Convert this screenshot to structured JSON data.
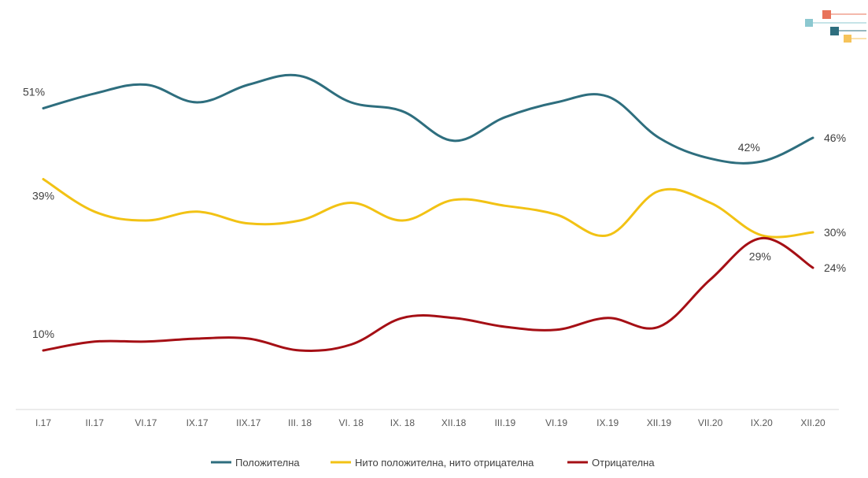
{
  "chart_data": {
    "type": "line",
    "categories": [
      "I.17",
      "II.17",
      "VI.17",
      "IX.17",
      "IIX.17",
      "III. 18",
      "VI. 18",
      "IX. 18",
      "XII.18",
      "III.19",
      "VI.19",
      "IX.19",
      "XII.19",
      "VII.20",
      "IX.20",
      "XII.20"
    ],
    "ylim": [
      0,
      60
    ],
    "grid": false,
    "legend_position": "bottom",
    "series": [
      {
        "name": "Положителна",
        "color": "#2E6E7E",
        "values": [
          51,
          53.5,
          55,
          52,
          55,
          56.5,
          52,
          50.5,
          45.5,
          49.5,
          52,
          53,
          46,
          42.5,
          42,
          46
        ]
      },
      {
        "name": "Нито положителна, нито отрицателна",
        "color": "#F2C214",
        "values": [
          39,
          33.5,
          32,
          33.5,
          31.5,
          32,
          35,
          32,
          35.5,
          34.5,
          33,
          29.5,
          37,
          35,
          29.5,
          30
        ]
      },
      {
        "name": "Отрицателна",
        "color": "#A50F15",
        "values": [
          10,
          11.5,
          11.5,
          12,
          12,
          10,
          11,
          15.5,
          15.5,
          14,
          13.5,
          15.5,
          14,
          22,
          29,
          24
        ]
      }
    ],
    "data_labels": [
      {
        "text": "51%",
        "series": 0,
        "index": 0
      },
      {
        "text": "42%",
        "series": 0,
        "index": 14
      },
      {
        "text": "46%",
        "series": 0,
        "index": 15
      },
      {
        "text": "39%",
        "series": 1,
        "index": 0
      },
      {
        "text": "30%",
        "series": 1,
        "index": 15
      },
      {
        "text": "10%",
        "series": 2,
        "index": 0
      },
      {
        "text": "29%",
        "series": 2,
        "index": 14
      },
      {
        "text": "24%",
        "series": 2,
        "index": 15
      }
    ]
  },
  "logo": {
    "colors": [
      "#E8735A",
      "#8CC8D0",
      "#2E6E7E",
      "#F6C35A"
    ]
  }
}
